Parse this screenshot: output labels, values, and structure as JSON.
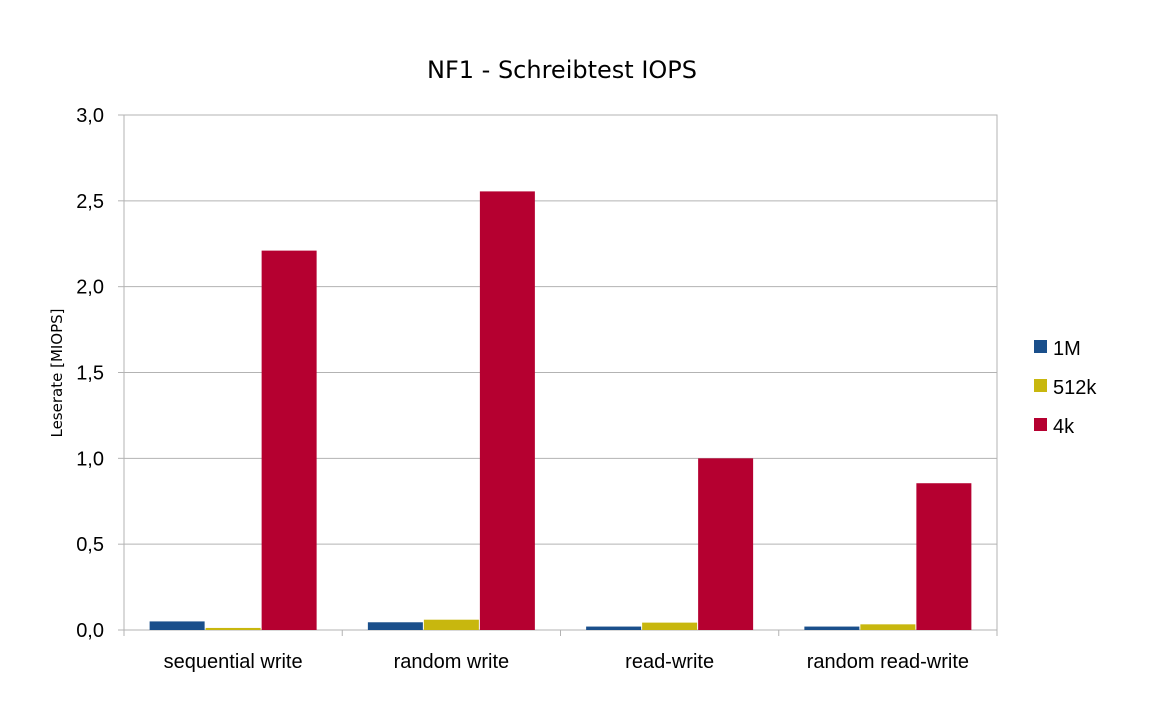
{
  "chart_data": {
    "type": "bar",
    "title": "NF1 - Schreibtest IOPS",
    "xlabel": "",
    "ylabel": "Leserate [MIOPS]",
    "categories": [
      "sequential write",
      "random write",
      "read-write",
      "random read-write"
    ],
    "series": [
      {
        "name": "1M",
        "color": "#1a4f8b",
        "values": [
          0.05,
          0.045,
          0.02,
          0.02
        ]
      },
      {
        "name": "512k",
        "color": "#c8b70e",
        "values": [
          0.012,
          0.06,
          0.043,
          0.033
        ]
      },
      {
        "name": "4k",
        "color": "#b50030",
        "values": [
          2.21,
          2.555,
          1.0,
          0.855
        ]
      }
    ],
    "ylim": [
      0,
      3.0
    ],
    "yticks": [
      "0,0",
      "0,5",
      "1,0",
      "1,5",
      "2,0",
      "2,5",
      "3,0"
    ],
    "grid": true,
    "legend_position": "right"
  }
}
